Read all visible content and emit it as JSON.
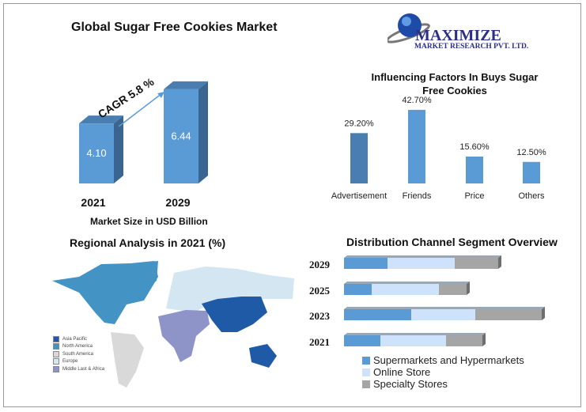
{
  "logo": {
    "name": "MAXIMIZE",
    "sub": "MARKET RESEARCH PVT. LTD."
  },
  "chart_data": [
    {
      "type": "bar",
      "title": "Global Sugar Free Cookies Market",
      "xlabel": "Market Size in USD Billion",
      "categories": [
        "2021",
        "2029"
      ],
      "values": [
        4.1,
        6.44
      ],
      "data_labels": [
        "4.10",
        "6.44"
      ],
      "annotation": "CAGR 5.8 %",
      "color": "#5b9bd5"
    },
    {
      "type": "bar",
      "title": "Influencing Factors In Buys Sugar Free Cookies",
      "categories": [
        "Advertisement",
        "Friends",
        "Price",
        "Others"
      ],
      "values": [
        29.2,
        42.7,
        15.6,
        12.5
      ],
      "data_labels": [
        "29.20%",
        "42.70%",
        "15.60%",
        "12.50%"
      ],
      "colors": [
        "#4a7eb0",
        "#5b9bd5",
        "#5b9bd5",
        "#5b9bd5"
      ]
    },
    {
      "type": "bar",
      "orientation": "horizontal-stacked",
      "title": "Distribution Channel Segment Overview",
      "categories": [
        "2029",
        "2025",
        "2023",
        "2021"
      ],
      "series": [
        {
          "name": "Supermarkets and Hypermarkets",
          "values": [
            55,
            35,
            85,
            46
          ],
          "color": "#5b9bd5"
        },
        {
          "name": "Online Store",
          "values": [
            85,
            85,
            81,
            83
          ],
          "color": "#cfe2fb"
        },
        {
          "name": "Specialty Stores",
          "values": [
            55,
            35,
            84,
            46
          ],
          "color": "#a5a5a5"
        }
      ],
      "legend": "bottom"
    }
  ],
  "map": {
    "title": "Regional Analysis in 2021 (%)",
    "legend": [
      {
        "label": "Asia Pacific",
        "color": "#1f5aa6"
      },
      {
        "label": "North America",
        "color": "#4393c4"
      },
      {
        "label": "South America",
        "color": "#d9d9d9"
      },
      {
        "label": "Europe",
        "color": "#d3e6f2"
      },
      {
        "label": "Middle Last & Africa",
        "color": "#8e93c8"
      }
    ]
  }
}
